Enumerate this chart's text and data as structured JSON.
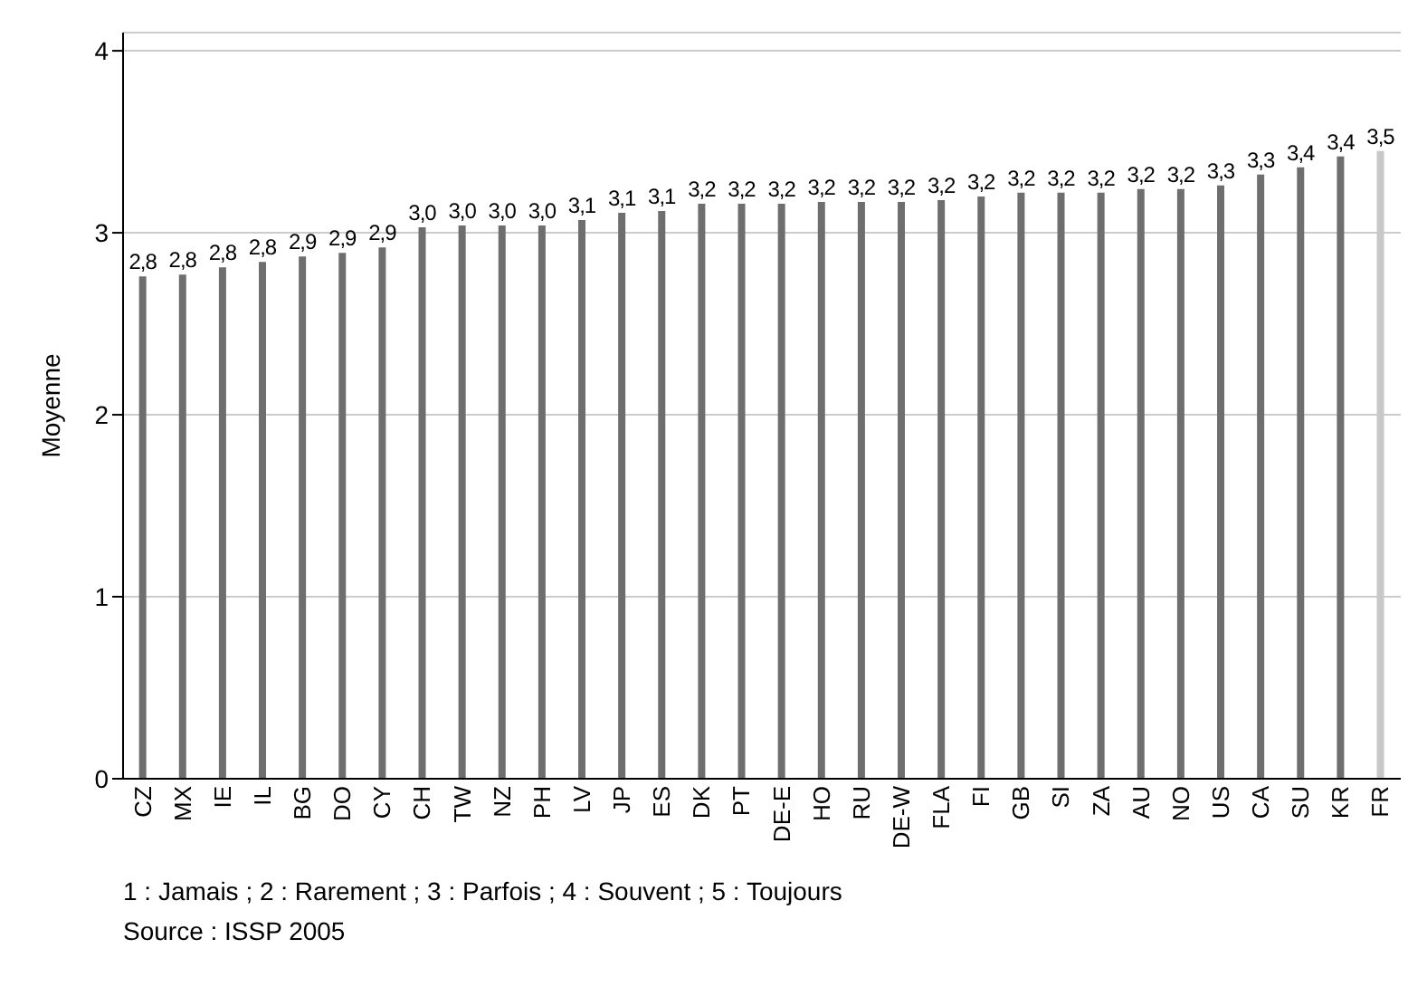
{
  "chart_data": {
    "type": "bar",
    "ylabel": "Moyenne",
    "categories": [
      "CZ",
      "MX",
      "IE",
      "IL",
      "BG",
      "DO",
      "CY",
      "CH",
      "TW",
      "NZ",
      "PH",
      "LV",
      "JP",
      "ES",
      "DK",
      "PT",
      "DE-E",
      "HO",
      "RU",
      "DE-W",
      "FLA",
      "FI",
      "GB",
      "SI",
      "ZA",
      "AU",
      "NO",
      "US",
      "CA",
      "SU",
      "KR",
      "FR"
    ],
    "values": [
      2.76,
      2.77,
      2.81,
      2.84,
      2.87,
      2.89,
      2.92,
      3.03,
      3.04,
      3.04,
      3.04,
      3.07,
      3.11,
      3.12,
      3.16,
      3.16,
      3.16,
      3.17,
      3.17,
      3.17,
      3.18,
      3.2,
      3.22,
      3.22,
      3.22,
      3.24,
      3.24,
      3.26,
      3.32,
      3.36,
      3.42,
      3.45
    ],
    "value_labels": [
      "2,8",
      "2,8",
      "2,8",
      "2,8",
      "2,9",
      "2,9",
      "2,9",
      "3,0",
      "3,0",
      "3,0",
      "3,0",
      "3,1",
      "3,1",
      "3,1",
      "3,2",
      "3,2",
      "3,2",
      "3,2",
      "3,2",
      "3,2",
      "3,2",
      "3,2",
      "3,2",
      "3,2",
      "3,2",
      "3,2",
      "3,2",
      "3,3",
      "3,3",
      "3,4",
      "3,4",
      "3,5"
    ],
    "colors": [
      "#6e6e6e",
      "#6e6e6e",
      "#6e6e6e",
      "#6e6e6e",
      "#6e6e6e",
      "#6e6e6e",
      "#6e6e6e",
      "#6e6e6e",
      "#6e6e6e",
      "#6e6e6e",
      "#6e6e6e",
      "#6e6e6e",
      "#6e6e6e",
      "#6e6e6e",
      "#6e6e6e",
      "#6e6e6e",
      "#6e6e6e",
      "#6e6e6e",
      "#6e6e6e",
      "#6e6e6e",
      "#6e6e6e",
      "#6e6e6e",
      "#6e6e6e",
      "#6e6e6e",
      "#6e6e6e",
      "#6e6e6e",
      "#6e6e6e",
      "#6e6e6e",
      "#6e6e6e",
      "#6e6e6e",
      "#6e6e6e",
      "#c8c8c8"
    ],
    "ylim": [
      0,
      4.1
    ],
    "yticks": [
      0,
      1,
      2,
      3,
      4
    ],
    "grid": "y",
    "annotations": [
      "1 : Jamais ; 2 : Rarement ; 3 : Parfois ; 4 : Souvent ; 5 : Toujours",
      "Source : ISSP 2005"
    ]
  }
}
